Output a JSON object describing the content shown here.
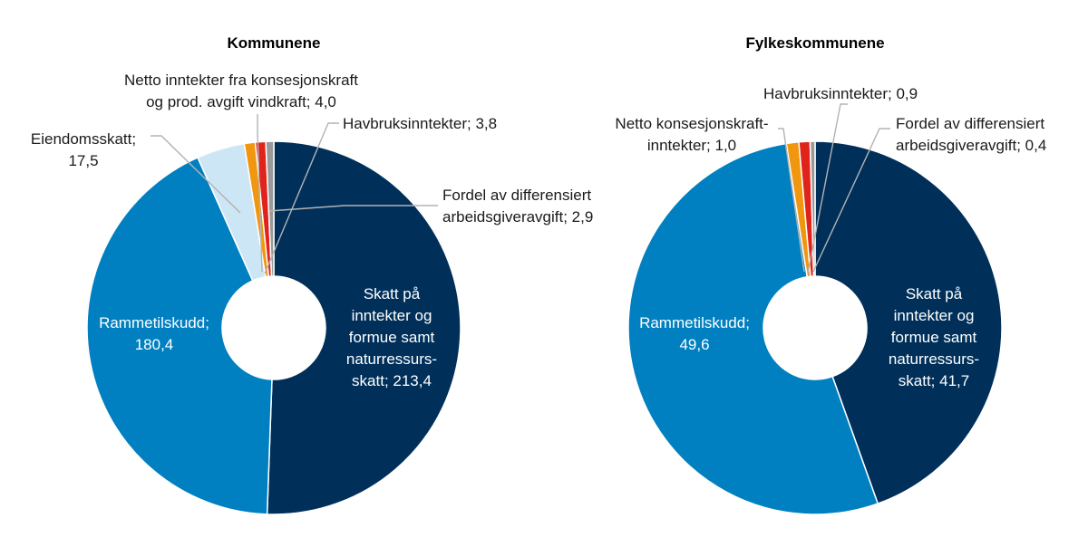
{
  "colors": {
    "skatt": "#00305a",
    "rammetilskudd": "#0080c0",
    "eiendomsskatt": "#cde6f5",
    "konsesjonskraft": "#f0960f",
    "havbruk": "#e0241b",
    "fordel": "#999999",
    "leader": "#b3b3b3"
  },
  "chart_data": [
    {
      "type": "pie",
      "title": "Kommunene",
      "slices": [
        {
          "key": "skatt",
          "label_lines": [
            "Skatt på",
            "inntekter og",
            "formue samt",
            "naturressurs-",
            "skatt; 213,4"
          ],
          "value": 213.4,
          "color": "#00305a"
        },
        {
          "key": "rammetilskudd",
          "label_lines": [
            "Rammetilskudd;",
            "180,4"
          ],
          "value": 180.4,
          "color": "#0080c0"
        },
        {
          "key": "eiendomsskatt",
          "label_lines": [
            "Eiendomsskatt;",
            "17,5"
          ],
          "value": 17.5,
          "color": "#cde6f5"
        },
        {
          "key": "konsesjonskraft",
          "label_lines": [
            "Netto inntekter fra konsesjonskraft",
            "og prod. avgift vindkraft; 4,0"
          ],
          "value": 4.0,
          "color": "#f0960f"
        },
        {
          "key": "havbruk",
          "label_lines": [
            "Havbruksinntekter; 3,8"
          ],
          "value": 3.8,
          "color": "#e0241b"
        },
        {
          "key": "fordel",
          "label_lines": [
            "Fordel av differensiert",
            "arbeidsgiveravgift; 2,9"
          ],
          "value": 2.9,
          "color": "#999999"
        }
      ]
    },
    {
      "type": "pie",
      "title": "Fylkeskommunene",
      "slices": [
        {
          "key": "skatt",
          "label_lines": [
            "Skatt på",
            "inntekter og",
            "formue samt",
            "naturressurs-",
            "skatt; 41,7"
          ],
          "value": 41.7,
          "color": "#00305a"
        },
        {
          "key": "rammetilskudd",
          "label_lines": [
            "Rammetilskudd;",
            "49,6"
          ],
          "value": 49.6,
          "color": "#0080c0"
        },
        {
          "key": "konsesjonskraft",
          "label_lines": [
            "Netto konsesjonskraft-",
            "inntekter; 1,0"
          ],
          "value": 1.0,
          "color": "#f0960f"
        },
        {
          "key": "havbruk",
          "label_lines": [
            "Havbruksinntekter; 0,9"
          ],
          "value": 0.9,
          "color": "#e0241b"
        },
        {
          "key": "fordel",
          "label_lines": [
            "Fordel av differensiert",
            "arbeidsgiveravgift; 0,4"
          ],
          "value": 0.4,
          "color": "#999999"
        }
      ]
    }
  ]
}
